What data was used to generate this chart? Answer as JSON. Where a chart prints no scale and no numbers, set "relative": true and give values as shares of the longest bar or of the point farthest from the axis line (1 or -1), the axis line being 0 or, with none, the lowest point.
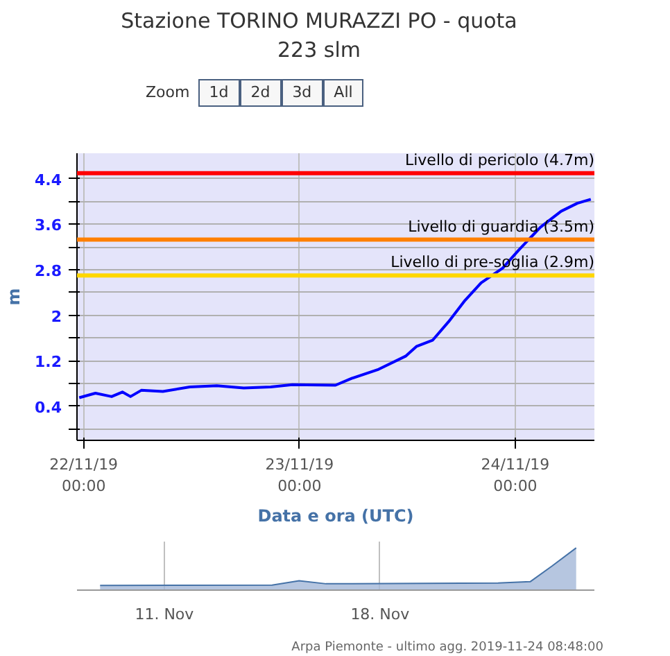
{
  "chart_data": [
    {
      "type": "line",
      "title": "Stazione TORINO MURAZZI PO - quota 223 slm",
      "xlabel": "Data e ora (UTC)",
      "ylabel": "m",
      "annotations": [
        "Zoom",
        "1d",
        "2d",
        "3d",
        "All"
      ],
      "x": [
        "2019-11-21T23:30",
        "2019-11-22T01:18",
        "2019-11-22T03:06",
        "2019-11-22T04:18",
        "2019-11-22T05:12",
        "2019-11-22T06:24",
        "2019-11-22T08:48",
        "2019-11-22T11:48",
        "2019-11-22T14:48",
        "2019-11-22T17:48",
        "2019-11-22T20:48",
        "2019-11-22T23:12",
        "2019-11-23T04:00",
        "2019-11-23T05:48",
        "2019-11-23T08:48",
        "2019-11-23T11:48",
        "2019-11-23T13:00",
        "2019-11-23T14:48",
        "2019-11-23T16:36",
        "2019-11-23T18:24",
        "2019-11-23T20:12",
        "2019-11-23T22:36",
        "2019-11-24T00:24",
        "2019-11-24T02:48",
        "2019-11-24T05:06",
        "2019-11-24T06:54",
        "2019-11-24T08:24"
      ],
      "series": [
        {
          "color": "#0000ff",
          "values": [
            0.55,
            0.63,
            0.57,
            0.65,
            0.57,
            0.68,
            0.66,
            0.74,
            0.76,
            0.72,
            0.74,
            0.78,
            0.77,
            0.89,
            1.05,
            1.28,
            1.45,
            1.56,
            1.89,
            2.26,
            2.57,
            2.83,
            3.15,
            3.55,
            3.83,
            3.97,
            4.04
          ]
        }
      ],
      "xlim": [
        "2019-11-21T23:15",
        "2019-11-24T08:48"
      ],
      "xticks": [
        {
          "value": "2019-11-22",
          "label": "22/11/19\n00:00"
        },
        {
          "value": "2019-11-23",
          "label": "23/11/19\n00:00"
        },
        {
          "value": "2019-11-24",
          "label": "24/11/19\n00:00"
        }
      ],
      "ylim": [
        -0.2,
        4.85
      ],
      "yticks": [
        {
          "value": 0,
          "label": null
        },
        0.4,
        {
          "value": 0.8,
          "label": null
        },
        1.2,
        {
          "value": 1.6,
          "label": null
        },
        2,
        {
          "value": 2.4,
          "label": null
        },
        2.8,
        {
          "value": 3.2,
          "label": null
        },
        3.6,
        {
          "value": 4.0,
          "label": null
        },
        4.4
      ],
      "grid": true,
      "marker": "none",
      "line_style": "solid",
      "ref_lines": [
        {
          "axis": "y",
          "value": 4.5,
          "label": "Livello di pericolo (4.7m)",
          "color": "#ff0000"
        },
        {
          "axis": "y",
          "value": 3.33,
          "label": "Livello di guardia (3.5m)",
          "color": "#ff8000"
        },
        {
          "axis": "y",
          "value": 2.7,
          "label": "Livello di pre-soglia (2.9m)",
          "color": "#ffd700"
        }
      ]
    },
    {
      "type": "area",
      "relative": true,
      "tick_labels": "x",
      "grid": "x",
      "annotations": [
        "Arpa Piemonte - ultimo agg. 2019-11-24 08:48:00"
      ],
      "x": [
        "2019-11-08T22:00",
        "2019-11-14T12:00",
        "2019-11-15T09:00",
        "2019-11-16T06:00",
        "2019-11-21T20:00",
        "2019-11-22T21:00",
        "2019-11-23T14:00",
        "2019-11-24T08:48"
      ],
      "series": [
        {
          "color": "#a4b8d8",
          "values": [
            0.11,
            0.12,
            0.22,
            0.15,
            0.17,
            0.2,
            0.57,
            1
          ]
        }
      ],
      "xlim": [
        "2019-11-08T04:00",
        "2019-11-24T23:00"
      ],
      "xticks": [
        {
          "value": "2019-11-11",
          "label": "11. Nov"
        },
        {
          "value": "2019-11-18",
          "label": "18. Nov"
        }
      ]
    }
  ]
}
